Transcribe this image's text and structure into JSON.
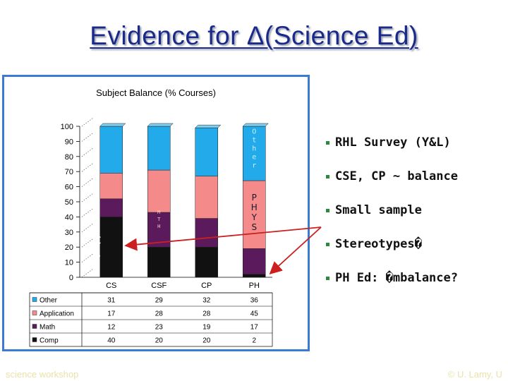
{
  "slide": {
    "title": "Evidence for Δ(Science Ed)",
    "bullets": [
      "RHL Survey (Y&L)",
      "CSE, CP ~ balance",
      "Small sample",
      "Stereotypes�",
      "PH Ed: �mbalance?"
    ],
    "footer_left": "science workshop",
    "footer_right": "© U. Lamy, U"
  },
  "chart_data": {
    "type": "bar",
    "stacked": true,
    "title": "Subject Balance (% Courses)",
    "categories": [
      "CS",
      "CSF",
      "CP",
      "PH"
    ],
    "series": [
      {
        "name": "Comp",
        "values": [
          40,
          20,
          20,
          2
        ],
        "color": "#111111"
      },
      {
        "name": "Math",
        "values": [
          12,
          23,
          19,
          17
        ],
        "color": "#5b1a5b"
      },
      {
        "name": "Application",
        "values": [
          17,
          28,
          28,
          45
        ],
        "color": "#f48a8a"
      },
      {
        "name": "Other",
        "values": [
          31,
          29,
          32,
          36
        ],
        "color": "#22aaea"
      }
    ],
    "table_rows": [
      "Other",
      "Application",
      "Math",
      "Comp"
    ],
    "ylim": [
      0,
      100
    ],
    "yticks": [
      0,
      10,
      20,
      30,
      40,
      50,
      60,
      70,
      80,
      90,
      100
    ],
    "annotations": {
      "cs_label": "C S",
      "csf_label": "M T H",
      "pct_other": "O t h e r",
      "pct_phys": "P H Y S"
    },
    "arrow_color": "#cc1f1f"
  }
}
